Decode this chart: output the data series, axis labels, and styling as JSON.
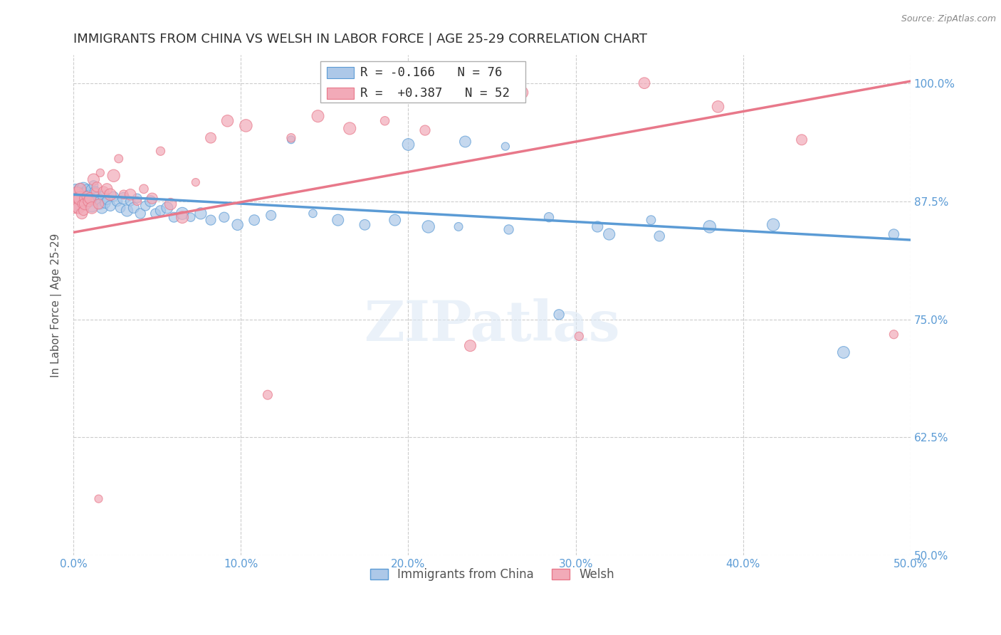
{
  "title": "IMMIGRANTS FROM CHINA VS WELSH IN LABOR FORCE | AGE 25-29 CORRELATION CHART",
  "source": "Source: ZipAtlas.com",
  "ylabel": "In Labor Force | Age 25-29",
  "xlim": [
    0.0,
    0.5
  ],
  "ylim": [
    0.5,
    1.03
  ],
  "ytick_values": [
    0.5,
    0.625,
    0.75,
    0.875,
    1.0
  ],
  "xtick_values": [
    0.0,
    0.1,
    0.2,
    0.3,
    0.4,
    0.5
  ],
  "watermark": "ZIPatlas",
  "blue_color": "#5b9bd5",
  "pink_color": "#e8788a",
  "scatter_blue": "#adc8e8",
  "scatter_pink": "#f2aab8",
  "axis_color": "#5b9bd5",
  "grid_color": "#cccccc",
  "blue_R": -0.166,
  "blue_N": 76,
  "pink_R": 0.387,
  "pink_N": 52,
  "blue_line_x": [
    0.0,
    0.5
  ],
  "blue_line_y": [
    0.882,
    0.834
  ],
  "pink_line_x": [
    0.0,
    0.5
  ],
  "pink_line_y": [
    0.842,
    1.002
  ],
  "blue_points_x": [
    0.001,
    0.002,
    0.002,
    0.003,
    0.003,
    0.003,
    0.004,
    0.004,
    0.004,
    0.005,
    0.005,
    0.006,
    0.006,
    0.006,
    0.007,
    0.007,
    0.008,
    0.008,
    0.009,
    0.01,
    0.01,
    0.011,
    0.012,
    0.013,
    0.014,
    0.015,
    0.016,
    0.017,
    0.018,
    0.019,
    0.02,
    0.022,
    0.024,
    0.026,
    0.028,
    0.03,
    0.032,
    0.034,
    0.036,
    0.038,
    0.04,
    0.043,
    0.046,
    0.049,
    0.052,
    0.056,
    0.06,
    0.065,
    0.07,
    0.076,
    0.082,
    0.09,
    0.098,
    0.108,
    0.118,
    0.13,
    0.143,
    0.158,
    0.174,
    0.192,
    0.212,
    0.234,
    0.258,
    0.284,
    0.313,
    0.345,
    0.38,
    0.418,
    0.46,
    0.49,
    0.2,
    0.23,
    0.26,
    0.29,
    0.32,
    0.35
  ],
  "blue_points_y": [
    0.888,
    0.883,
    0.876,
    0.886,
    0.878,
    0.87,
    0.888,
    0.88,
    0.872,
    0.883,
    0.876,
    0.888,
    0.882,
    0.875,
    0.882,
    0.875,
    0.888,
    0.878,
    0.88,
    0.888,
    0.875,
    0.87,
    0.892,
    0.885,
    0.878,
    0.875,
    0.872,
    0.868,
    0.88,
    0.873,
    0.876,
    0.87,
    0.88,
    0.875,
    0.868,
    0.878,
    0.865,
    0.875,
    0.868,
    0.878,
    0.862,
    0.87,
    0.875,
    0.862,
    0.865,
    0.868,
    0.858,
    0.862,
    0.858,
    0.862,
    0.855,
    0.858,
    0.85,
    0.855,
    0.86,
    0.94,
    0.862,
    0.855,
    0.85,
    0.855,
    0.848,
    0.938,
    0.933,
    0.858,
    0.848,
    0.855,
    0.848,
    0.85,
    0.715,
    0.84,
    0.935,
    0.848,
    0.845,
    0.755,
    0.84,
    0.838
  ],
  "pink_points_x": [
    0.001,
    0.002,
    0.002,
    0.003,
    0.003,
    0.004,
    0.004,
    0.005,
    0.005,
    0.006,
    0.006,
    0.007,
    0.008,
    0.009,
    0.01,
    0.011,
    0.012,
    0.013,
    0.014,
    0.015,
    0.016,
    0.018,
    0.02,
    0.022,
    0.024,
    0.027,
    0.03,
    0.034,
    0.038,
    0.042,
    0.047,
    0.052,
    0.058,
    0.065,
    0.073,
    0.082,
    0.092,
    0.103,
    0.116,
    0.13,
    0.146,
    0.165,
    0.186,
    0.21,
    0.237,
    0.268,
    0.302,
    0.341,
    0.385,
    0.435,
    0.49,
    0.015
  ],
  "pink_points_y": [
    0.875,
    0.87,
    0.882,
    0.878,
    0.868,
    0.878,
    0.888,
    0.872,
    0.862,
    0.878,
    0.865,
    0.872,
    0.88,
    0.875,
    0.878,
    0.868,
    0.898,
    0.885,
    0.89,
    0.872,
    0.905,
    0.885,
    0.888,
    0.882,
    0.902,
    0.92,
    0.882,
    0.882,
    0.875,
    0.888,
    0.878,
    0.928,
    0.872,
    0.858,
    0.895,
    0.942,
    0.96,
    0.955,
    0.67,
    0.942,
    0.965,
    0.952,
    0.96,
    0.95,
    0.722,
    0.99,
    0.732,
    1.0,
    0.975,
    0.94,
    0.734,
    0.56
  ]
}
